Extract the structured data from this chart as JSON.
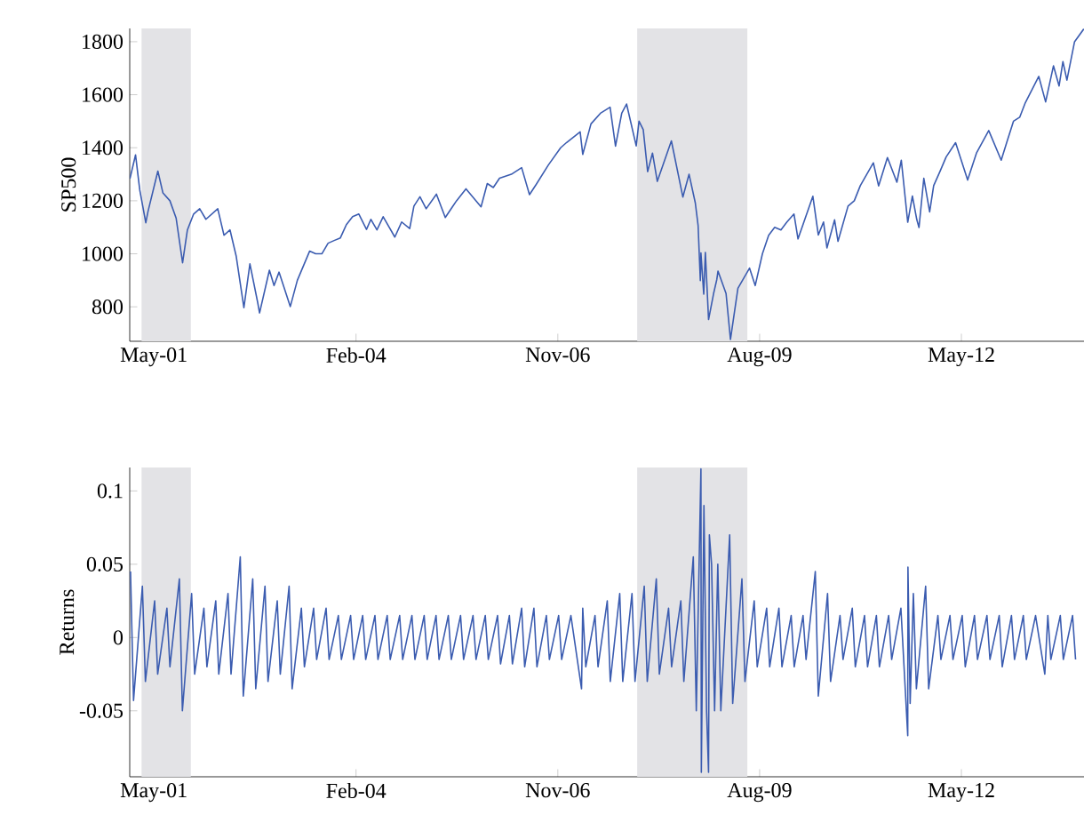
{
  "chart_data": [
    {
      "type": "line",
      "ylabel": "SP500",
      "xlim": [
        "2001-01-01",
        "2014-01-01"
      ],
      "ylim": [
        670,
        1850
      ],
      "yticks": [
        800,
        1000,
        1200,
        1400,
        1600,
        1800
      ],
      "xticks": [
        {
          "value": "2001-05-01",
          "label": "May-01"
        },
        {
          "value": "2004-02-01",
          "label": "Feb-04"
        },
        {
          "value": "2006-11-01",
          "label": "Nov-06"
        },
        {
          "value": "2009-08-01",
          "label": "Aug-09"
        },
        {
          "value": "2012-05-01",
          "label": "May-12"
        }
      ],
      "bands": [
        {
          "axis": "x",
          "from": "2001-03-01",
          "to": "2001-11-01",
          "color": "#e3e3e6"
        },
        {
          "axis": "x",
          "from": "2007-12-01",
          "to": "2009-06-01",
          "color": "#e3e3e6"
        }
      ],
      "marker": "none",
      "line_style": "solid",
      "series": [
        {
          "color": "#3b5cb0",
          "x": [
            "2001-01-02",
            "2001-01-30",
            "2001-02-20",
            "2001-03-22",
            "2001-04-02",
            "2001-05-21",
            "2001-06-15",
            "2001-07-20",
            "2001-08-20",
            "2001-09-21",
            "2001-10-15",
            "2001-11-15",
            "2001-12-15",
            "2002-01-15",
            "2002-03-15",
            "2002-04-15",
            "2002-05-15",
            "2002-06-15",
            "2002-07-23",
            "2002-08-22",
            "2002-09-30",
            "2002-10-09",
            "2002-11-27",
            "2002-12-20",
            "2003-01-14",
            "2003-03-11",
            "2003-04-15",
            "2003-06-15",
            "2003-07-15",
            "2003-08-15",
            "2003-09-15",
            "2003-10-15",
            "2003-11-15",
            "2003-12-15",
            "2004-01-15",
            "2004-02-15",
            "2004-03-24",
            "2004-04-15",
            "2004-05-15",
            "2004-06-15",
            "2004-08-12",
            "2004-09-15",
            "2004-10-25",
            "2004-11-15",
            "2004-12-15",
            "2005-01-15",
            "2005-03-07",
            "2005-04-20",
            "2005-06-15",
            "2005-08-01",
            "2005-10-15",
            "2005-11-15",
            "2005-12-15",
            "2006-01-15",
            "2006-03-15",
            "2006-05-05",
            "2006-06-13",
            "2006-07-15",
            "2006-09-15",
            "2006-11-15",
            "2006-12-15",
            "2007-02-20",
            "2007-03-05",
            "2007-04-15",
            "2007-06-01",
            "2007-07-19",
            "2007-08-15",
            "2007-09-15",
            "2007-10-09",
            "2007-11-26",
            "2007-12-10",
            "2007-12-31",
            "2008-01-22",
            "2008-02-15",
            "2008-03-10",
            "2008-05-19",
            "2008-07-15",
            "2008-08-15",
            "2008-09-15",
            "2008-09-29",
            "2008-10-10",
            "2008-10-13",
            "2008-10-27",
            "2008-11-04",
            "2008-11-20",
            "2008-12-15",
            "2008-12-31",
            "2009-01-06",
            "2009-02-15",
            "2009-03-09",
            "2009-04-15",
            "2009-06-12",
            "2009-07-10",
            "2009-08-15",
            "2009-09-15",
            "2009-10-15",
            "2009-11-15",
            "2009-12-15",
            "2010-01-19",
            "2010-02-08",
            "2010-04-23",
            "2010-05-20",
            "2010-06-15",
            "2010-07-02",
            "2010-08-09",
            "2010-08-26",
            "2010-10-15",
            "2010-11-15",
            "2010-12-15",
            "2011-02-18",
            "2011-03-16",
            "2011-04-29",
            "2011-06-15",
            "2011-07-07",
            "2011-08-08",
            "2011-08-31",
            "2011-09-22",
            "2011-10-03",
            "2011-10-27",
            "2011-11-25",
            "2011-12-15",
            "2012-01-15",
            "2012-02-15",
            "2012-04-02",
            "2012-06-01",
            "2012-07-15",
            "2012-09-14",
            "2012-11-15",
            "2012-12-15",
            "2013-01-15",
            "2013-02-15",
            "2013-03-15",
            "2013-05-21",
            "2013-06-24",
            "2013-08-02",
            "2013-08-30",
            "2013-09-18",
            "2013-10-08",
            "2013-11-15",
            "2013-12-31"
          ],
          "values": [
            1283,
            1373,
            1240,
            1117,
            1160,
            1312,
            1230,
            1200,
            1134,
            966,
            1090,
            1150,
            1170,
            1130,
            1170,
            1070,
            1090,
            990,
            797,
            962,
            815,
            777,
            938,
            880,
            931,
            801,
            900,
            1010,
            1000,
            1000,
            1040,
            1050,
            1060,
            1110,
            1140,
            1150,
            1092,
            1130,
            1090,
            1140,
            1063,
            1120,
            1095,
            1180,
            1215,
            1170,
            1225,
            1137,
            1200,
            1245,
            1177,
            1265,
            1250,
            1285,
            1300,
            1325,
            1223,
            1260,
            1335,
            1400,
            1420,
            1460,
            1375,
            1490,
            1530,
            1553,
            1406,
            1530,
            1565,
            1407,
            1500,
            1468,
            1310,
            1380,
            1273,
            1426,
            1214,
            1300,
            1192,
            1106,
            899,
            1003,
            848,
            1005,
            752,
            850,
            903,
            935,
            850,
            677,
            870,
            946,
            880,
            1000,
            1070,
            1100,
            1090,
            1120,
            1150,
            1056,
            1217,
            1071,
            1120,
            1022,
            1128,
            1047,
            1180,
            1200,
            1257,
            1343,
            1256,
            1363,
            1270,
            1353,
            1119,
            1218,
            1129,
            1099,
            1285,
            1158,
            1257,
            1310,
            1365,
            1419,
            1278,
            1380,
            1465,
            1353,
            1426,
            1500,
            1515,
            1570,
            1669,
            1573,
            1709,
            1633,
            1725,
            1655,
            1800,
            1848
          ]
        }
      ]
    },
    {
      "type": "line",
      "ylabel": "Returns",
      "xlim": [
        "2001-01-01",
        "2014-01-01"
      ],
      "ylim": [
        -0.095,
        0.116
      ],
      "yticks": [
        -0.05,
        0,
        0.05,
        0.1
      ],
      "xticks": [
        {
          "value": "2001-05-01",
          "label": "May-01"
        },
        {
          "value": "2004-02-01",
          "label": "Feb-04"
        },
        {
          "value": "2006-11-01",
          "label": "Nov-06"
        },
        {
          "value": "2009-08-01",
          "label": "Aug-09"
        },
        {
          "value": "2012-05-01",
          "label": "May-12"
        }
      ],
      "bands": [
        {
          "axis": "x",
          "from": "2001-03-01",
          "to": "2001-11-01",
          "color": "#e3e3e6"
        },
        {
          "axis": "x",
          "from": "2007-12-01",
          "to": "2009-06-01",
          "color": "#e3e3e6"
        }
      ],
      "marker": "none",
      "line_style": "solid",
      "series": [
        {
          "color": "#3b5cb0",
          "x": [
            "2001-01-05",
            "2001-01-20",
            "2001-03-05",
            "2001-03-20",
            "2001-05-05",
            "2001-05-20",
            "2001-07-05",
            "2001-07-20",
            "2001-09-05",
            "2001-09-20",
            "2001-11-05",
            "2001-11-20",
            "2002-01-05",
            "2002-01-20",
            "2002-03-05",
            "2002-03-20",
            "2002-05-05",
            "2002-05-20",
            "2002-07-05",
            "2002-07-20",
            "2002-09-05",
            "2002-09-20",
            "2002-11-05",
            "2002-11-20",
            "2003-01-05",
            "2003-01-20",
            "2003-03-05",
            "2003-03-20",
            "2003-05-05",
            "2003-05-20",
            "2003-07-05",
            "2003-07-20",
            "2003-09-05",
            "2003-09-20",
            "2003-11-05",
            "2003-11-20",
            "2004-01-05",
            "2004-01-20",
            "2004-03-05",
            "2004-03-20",
            "2004-05-05",
            "2004-05-20",
            "2004-07-05",
            "2004-07-20",
            "2004-09-05",
            "2004-09-20",
            "2004-11-05",
            "2004-11-20",
            "2005-01-05",
            "2005-01-20",
            "2005-03-05",
            "2005-03-20",
            "2005-05-05",
            "2005-05-20",
            "2005-07-05",
            "2005-07-20",
            "2005-09-05",
            "2005-09-20",
            "2005-11-05",
            "2005-11-20",
            "2006-01-05",
            "2006-01-20",
            "2006-03-05",
            "2006-03-20",
            "2006-05-05",
            "2006-05-20",
            "2006-07-05",
            "2006-07-20",
            "2006-09-05",
            "2006-09-20",
            "2006-11-05",
            "2006-11-20",
            "2007-01-05",
            "2007-02-27",
            "2007-03-05",
            "2007-03-20",
            "2007-05-05",
            "2007-05-20",
            "2007-07-05",
            "2007-07-20",
            "2007-09-05",
            "2007-09-20",
            "2007-11-05",
            "2007-11-20",
            "2008-01-05",
            "2008-01-20",
            "2008-03-05",
            "2008-03-20",
            "2008-05-05",
            "2008-05-20",
            "2008-07-05",
            "2008-07-20",
            "2008-09-05",
            "2008-09-20",
            "2008-10-13",
            "2008-10-15",
            "2008-10-28",
            "2008-11-10",
            "2008-11-20",
            "2008-11-24",
            "2008-12-05",
            "2008-12-20",
            "2009-01-05",
            "2009-01-20",
            "2009-03-05",
            "2009-03-20",
            "2009-05-05",
            "2009-05-20",
            "2009-07-05",
            "2009-07-20",
            "2009-09-05",
            "2009-09-20",
            "2009-11-05",
            "2009-11-20",
            "2010-01-05",
            "2010-01-20",
            "2010-03-05",
            "2010-03-20",
            "2010-05-05",
            "2010-05-20",
            "2010-07-05",
            "2010-07-20",
            "2010-09-05",
            "2010-09-20",
            "2010-11-05",
            "2010-11-20",
            "2011-01-05",
            "2011-01-20",
            "2011-03-05",
            "2011-03-20",
            "2011-05-05",
            "2011-05-20",
            "2011-07-05",
            "2011-08-08",
            "2011-08-09",
            "2011-08-20",
            "2011-09-05",
            "2011-09-20",
            "2011-11-05",
            "2011-11-20",
            "2012-01-05",
            "2012-01-20",
            "2012-03-05",
            "2012-03-20",
            "2012-05-05",
            "2012-05-20",
            "2012-07-05",
            "2012-07-20",
            "2012-09-05",
            "2012-09-20",
            "2012-11-05",
            "2012-11-20",
            "2013-01-05",
            "2013-01-20",
            "2013-03-05",
            "2013-03-20",
            "2013-05-05",
            "2013-06-20",
            "2013-07-05",
            "2013-07-20",
            "2013-09-05",
            "2013-09-20",
            "2013-11-05",
            "2013-11-20"
          ],
          "values": [
            0.045,
            -0.043,
            0.035,
            -0.03,
            0.025,
            -0.025,
            0.02,
            -0.02,
            0.04,
            -0.05,
            0.03,
            -0.025,
            0.02,
            -0.02,
            0.025,
            -0.025,
            0.03,
            -0.025,
            0.055,
            -0.04,
            0.04,
            -0.035,
            0.035,
            -0.03,
            0.025,
            -0.025,
            0.035,
            -0.035,
            0.02,
            -0.02,
            0.02,
            -0.015,
            0.02,
            -0.015,
            0.015,
            -0.015,
            0.015,
            -0.015,
            0.015,
            -0.015,
            0.015,
            -0.015,
            0.015,
            -0.015,
            0.015,
            -0.015,
            0.015,
            -0.015,
            0.015,
            -0.015,
            0.015,
            -0.015,
            0.015,
            -0.015,
            0.015,
            -0.015,
            0.015,
            -0.015,
            0.015,
            -0.015,
            0.015,
            -0.018,
            0.015,
            -0.018,
            0.02,
            -0.02,
            0.02,
            -0.02,
            0.015,
            -0.015,
            0.015,
            -0.015,
            0.015,
            -0.035,
            0.02,
            -0.02,
            0.015,
            -0.02,
            0.025,
            -0.03,
            0.03,
            -0.03,
            0.03,
            -0.03,
            0.035,
            -0.03,
            0.04,
            -0.025,
            0.02,
            -0.02,
            0.025,
            -0.03,
            0.055,
            -0.05,
            0.115,
            -0.092,
            0.09,
            -0.05,
            -0.092,
            0.07,
            0.05,
            -0.05,
            0.05,
            -0.05,
            0.07,
            -0.045,
            0.04,
            -0.03,
            0.025,
            -0.02,
            0.02,
            -0.02,
            0.02,
            -0.02,
            0.015,
            -0.02,
            0.015,
            -0.015,
            0.045,
            -0.04,
            0.03,
            -0.03,
            0.015,
            -0.015,
            0.02,
            -0.02,
            0.015,
            -0.02,
            0.015,
            -0.02,
            0.015,
            -0.015,
            0.02,
            -0.067,
            0.048,
            -0.045,
            0.03,
            -0.035,
            0.035,
            -0.035,
            0.015,
            -0.015,
            0.015,
            -0.015,
            0.015,
            -0.02,
            0.015,
            -0.015,
            0.015,
            -0.015,
            0.015,
            -0.02,
            0.015,
            -0.015,
            0.015,
            -0.015,
            0.015,
            -0.025,
            0.015,
            -0.015,
            0.015,
            -0.015,
            0.015,
            -0.015
          ]
        }
      ]
    }
  ]
}
